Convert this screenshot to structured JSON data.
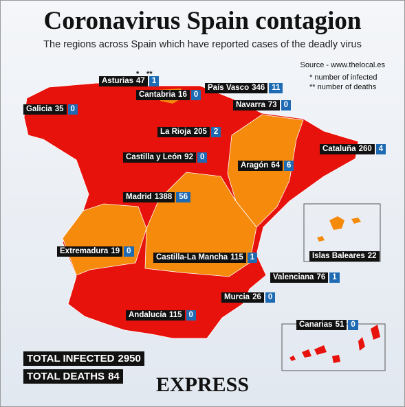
{
  "header": {
    "title": "Coronavirus Spain contagion",
    "subtitle": "The regions across Spain which have reported cases of the deadly virus"
  },
  "notes": {
    "source": "Source - www.thelocal.es",
    "infected_mark": "*",
    "infected_note": "number of infected",
    "deaths_mark": "**",
    "deaths_note": "number of deaths"
  },
  "regions": [
    {
      "name": "Asturias",
      "infected": 47,
      "deaths": 1
    },
    {
      "name": "Cantabria",
      "infected": 16,
      "deaths": 0
    },
    {
      "name": "País Vasco",
      "infected": 346,
      "deaths": 11
    },
    {
      "name": "Galicia",
      "infected": 35,
      "deaths": 0
    },
    {
      "name": "Navarra",
      "infected": 73,
      "deaths": 0
    },
    {
      "name": "La Rioja",
      "infected": 205,
      "deaths": 2
    },
    {
      "name": "Cataluña",
      "infected": 260,
      "deaths": 4
    },
    {
      "name": "Castilla y León",
      "infected": 92,
      "deaths": 0
    },
    {
      "name": "Aragón",
      "infected": 64,
      "deaths": 6
    },
    {
      "name": "Madrid",
      "infected": 1388,
      "deaths": 56
    },
    {
      "name": "Extremadura",
      "infected": 19,
      "deaths": 0
    },
    {
      "name": "Castilla-La Mancha",
      "infected": 115,
      "deaths": 1
    },
    {
      "name": "Islas Baleares",
      "infected": 22
    },
    {
      "name": "Valenciana",
      "infected": 76,
      "deaths": 1
    },
    {
      "name": "Murcia",
      "infected": 26,
      "deaths": 0
    },
    {
      "name": "Andalucía",
      "infected": 115,
      "deaths": 0
    },
    {
      "name": "Canarias",
      "infected": 51,
      "deaths": 0
    }
  ],
  "totals": [
    {
      "label": "TOTAL INFECTED",
      "value": 2950
    },
    {
      "label": "TOTAL DEATHS",
      "value": 84
    }
  ],
  "brand": "EXPRESS"
}
